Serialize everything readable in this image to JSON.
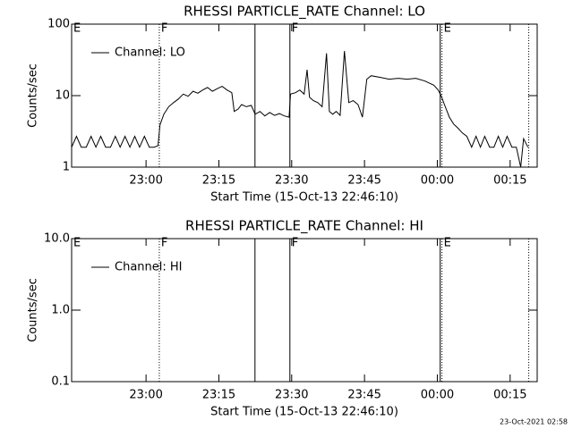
{
  "chart_data": [
    {
      "type": "line",
      "title": "RHESSI PARTICLE_RATE Channel: LO",
      "ylabel": "Counts/sec",
      "xlabel": "Start Time (15-Oct-13 22:46:10)",
      "log_y": true,
      "legend": "top-left",
      "xlim": [
        -1.5,
        94.4
      ],
      "ylim": [
        1,
        100
      ],
      "xticks": [
        {
          "value": 13.83,
          "label": "23:00"
        },
        {
          "value": 28.83,
          "label": "23:15"
        },
        {
          "value": 43.83,
          "label": "23:30"
        },
        {
          "value": 58.83,
          "label": "23:45"
        },
        {
          "value": 73.83,
          "label": "00:00"
        },
        {
          "value": 88.83,
          "label": "00:15"
        }
      ],
      "yticks": [
        1,
        10,
        100
      ],
      "vlines": [
        {
          "x": 16.56,
          "dotted": true
        },
        {
          "x": 36.27,
          "dotted": false
        },
        {
          "x": 43.46,
          "dotted": false
        },
        {
          "x": 74.42,
          "dotted": false
        },
        {
          "x": 74.78,
          "dotted": true
        },
        {
          "x": 92.66,
          "dotted": true
        }
      ],
      "flags": [
        {
          "x": -1.5,
          "label": "E"
        },
        {
          "x": 16.56,
          "label": "F"
        },
        {
          "x": 43.46,
          "label": "F"
        },
        {
          "x": 74.78,
          "label": "E"
        }
      ],
      "x": [
        -1.5,
        -0.5,
        0.5,
        1.5,
        2.5,
        3.5,
        4.5,
        5.5,
        6.5,
        7.5,
        8.5,
        9.5,
        10.5,
        11.5,
        12.5,
        13.5,
        14.5,
        15.5,
        16.3,
        16.7,
        17.5,
        18.5,
        19.5,
        20.5,
        21.5,
        22.5,
        23.5,
        24.5,
        25.5,
        26.5,
        27.5,
        28.5,
        29.5,
        30.5,
        31.5,
        32,
        32.8,
        33.5,
        34.5,
        35.5,
        36.3,
        37.3,
        38.3,
        39.3,
        40.3,
        41.3,
        42.3,
        43.3,
        43.6,
        44.6,
        45.5,
        46.4,
        47.0,
        47.5,
        48.3,
        49.2,
        50.1,
        51.0,
        51.6,
        52.3,
        53.0,
        53.8,
        54.7,
        55.6,
        56.5,
        57.5,
        58.4,
        59.3,
        60.2,
        62.1,
        63.9,
        65.8,
        67.6,
        69.4,
        71.3,
        73.1,
        74.0,
        74.6,
        75.3,
        76.3,
        77.2,
        78.1,
        79.0,
        79.9,
        80.9,
        81.8,
        82.7,
        83.6,
        84.6,
        85.5,
        86.4,
        87.3,
        88.2,
        89.2,
        90.1,
        91.0,
        91.6,
        92.5
      ],
      "series": [
        {
          "name": "Channel: LO",
          "color": "#000000",
          "values": [
            1.9,
            2.7,
            1.9,
            1.9,
            2.7,
            1.9,
            2.7,
            1.9,
            1.9,
            2.7,
            1.9,
            2.7,
            1.9,
            2.7,
            1.9,
            2.7,
            1.9,
            1.9,
            2.0,
            3.9,
            5.5,
            7.0,
            8.0,
            9.0,
            10.5,
            9.8,
            11.5,
            10.8,
            12.0,
            13.0,
            11.5,
            12.5,
            13.5,
            12.0,
            11.0,
            6.0,
            6.5,
            7.5,
            7.0,
            7.3,
            5.5,
            6.0,
            5.2,
            5.8,
            5.3,
            5.6,
            5.2,
            5.0,
            10.5,
            11,
            12,
            10.5,
            23,
            9.5,
            8.5,
            8.0,
            7.0,
            39,
            6.0,
            5.5,
            6.0,
            5.3,
            42,
            8,
            8.5,
            7.5,
            5.0,
            17,
            19,
            18,
            17,
            17.5,
            17,
            17.5,
            16,
            14,
            12,
            10,
            7.5,
            5.0,
            4.0,
            3.5,
            3.0,
            2.7,
            1.9,
            2.7,
            1.9,
            2.7,
            1.9,
            1.9,
            2.7,
            1.9,
            2.7,
            1.9,
            1.9,
            1.0,
            2.5,
            1.9
          ]
        }
      ]
    },
    {
      "type": "line",
      "title": "RHESSI PARTICLE_RATE Channel: HI",
      "ylabel": "Counts/sec",
      "xlabel": "Start Time (15-Oct-13 22:46:10)",
      "log_y": true,
      "legend": "top-left",
      "xlim": [
        -1.5,
        94.4
      ],
      "ylim": [
        0.1,
        10
      ],
      "xticks": [
        {
          "value": 13.83,
          "label": "23:00"
        },
        {
          "value": 28.83,
          "label": "23:15"
        },
        {
          "value": 43.83,
          "label": "23:30"
        },
        {
          "value": 58.83,
          "label": "23:45"
        },
        {
          "value": 73.83,
          "label": "00:00"
        },
        {
          "value": 88.83,
          "label": "00:15"
        }
      ],
      "yticks": [
        0.1,
        {
          "value": 1,
          "label": "1.0"
        },
        {
          "value": 10,
          "label": "10.0"
        }
      ],
      "vlines": [
        {
          "x": 16.56,
          "dotted": true
        },
        {
          "x": 36.27,
          "dotted": false
        },
        {
          "x": 43.46,
          "dotted": false
        },
        {
          "x": 74.42,
          "dotted": false
        },
        {
          "x": 74.78,
          "dotted": true
        },
        {
          "x": 92.66,
          "dotted": true
        }
      ],
      "flags": [
        {
          "x": -1.5,
          "label": "E"
        },
        {
          "x": 16.56,
          "label": "F"
        },
        {
          "x": 43.46,
          "label": "F"
        },
        {
          "x": 74.78,
          "label": "E"
        }
      ],
      "x": [],
      "series": [
        {
          "name": "Channel: HI",
          "color": "#000000",
          "values": []
        }
      ]
    }
  ],
  "footer": "23-Oct-2021 02:58"
}
